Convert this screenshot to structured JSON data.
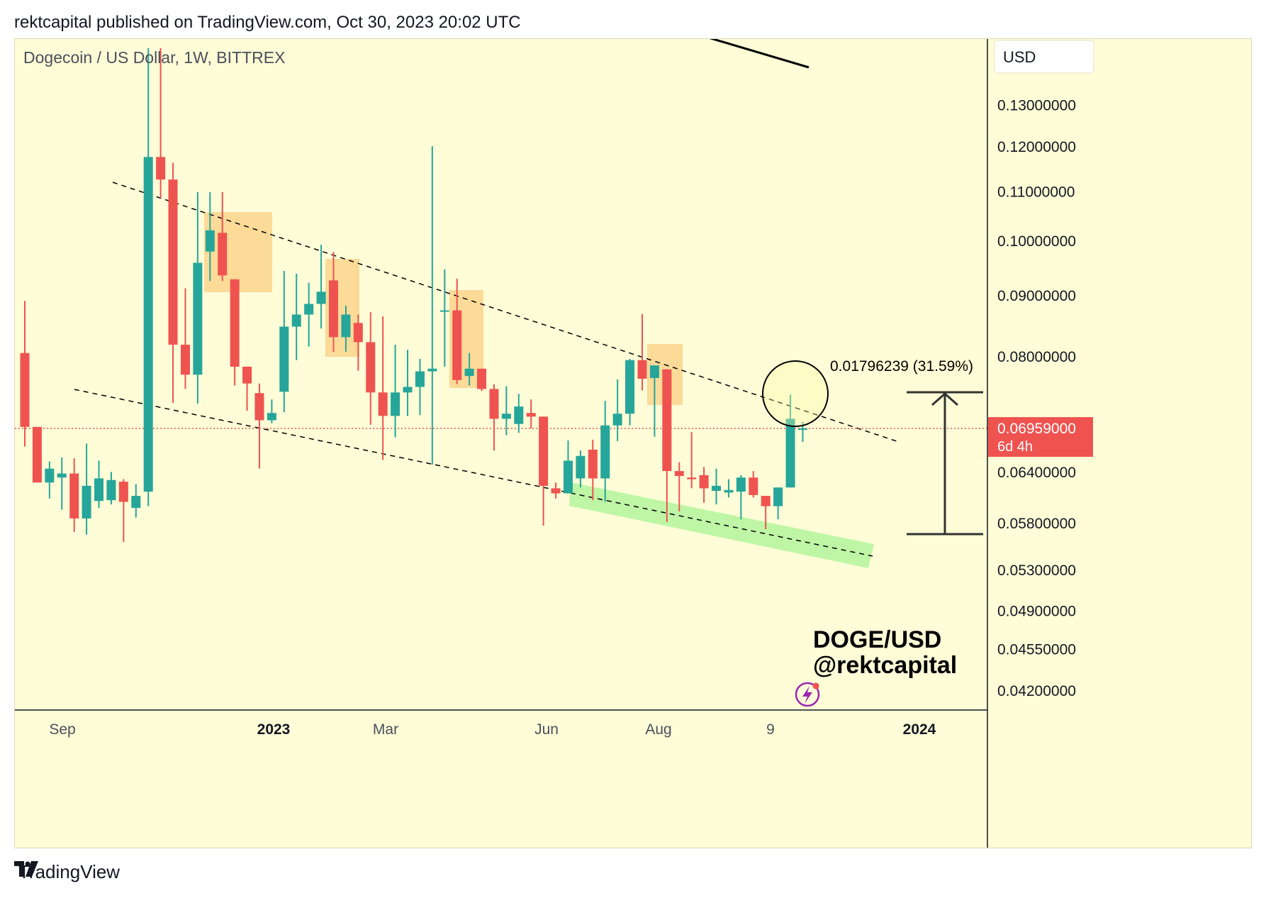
{
  "header": {
    "published": "rektcapital published on TradingView.com, Oct 30, 2023 20:02 UTC"
  },
  "chart": {
    "symbol_title": "Dogecoin / US Dollar, 1W, BITTREX",
    "currency_label": "USD",
    "watermark_line1": "DOGE/USD",
    "watermark_line2": "@rektcapital",
    "measure_label": "0.01796239 (31.59%)",
    "price_label": "0.06959000",
    "countdown_label": "6d 4h"
  },
  "footer": {
    "brand": "TradingView"
  },
  "colors": {
    "background": "#fefdd7",
    "up": "#26a69a",
    "down": "#ef5350",
    "zone": "#fbd38d",
    "support_zone": "#b7f5a0",
    "price_badge": "#ef5350"
  },
  "chart_data": {
    "type": "candlestick",
    "title": "Dogecoin / US Dollar, 1W, BITTREX",
    "y_axis_ticks": [
      "0.13000000",
      "0.12000000",
      "0.11000000",
      "0.10000000",
      "0.09000000",
      "0.08000000",
      "0.06959000",
      "0.06400000",
      "0.05800000",
      "0.05300000",
      "0.04900000",
      "0.04550000",
      "0.04200000"
    ],
    "x_axis_labels": [
      {
        "label": "Sep",
        "bold": false
      },
      {
        "label": "2023",
        "bold": true
      },
      {
        "label": "Mar",
        "bold": false
      },
      {
        "label": "Jun",
        "bold": false
      },
      {
        "label": "Aug",
        "bold": false
      },
      {
        "label": "9",
        "bold": false
      },
      {
        "label": "2024",
        "bold": true
      }
    ],
    "log_scale": true,
    "ylim": [
      0.0395,
      0.145
    ],
    "current_price": 0.06959,
    "candles": [
      {
        "o": 0.0805,
        "h": 0.089,
        "l": 0.0672,
        "c": 0.0698
      },
      {
        "o": 0.0698,
        "h": 0.0698,
        "l": 0.0628,
        "c": 0.0627
      },
      {
        "o": 0.0627,
        "h": 0.0653,
        "l": 0.0608,
        "c": 0.0644
      },
      {
        "o": 0.0633,
        "h": 0.0658,
        "l": 0.0595,
        "c": 0.0638
      },
      {
        "o": 0.0638,
        "h": 0.0657,
        "l": 0.057,
        "c": 0.0585
      },
      {
        "o": 0.0585,
        "h": 0.0676,
        "l": 0.0567,
        "c": 0.0623
      },
      {
        "o": 0.0605,
        "h": 0.0654,
        "l": 0.0597,
        "c": 0.0632
      },
      {
        "o": 0.0606,
        "h": 0.064,
        "l": 0.0601,
        "c": 0.063
      },
      {
        "o": 0.0628,
        "h": 0.0631,
        "l": 0.0559,
        "c": 0.0604
      },
      {
        "o": 0.0597,
        "h": 0.0625,
        "l": 0.0586,
        "c": 0.0611
      },
      {
        "o": 0.0616,
        "h": 0.145,
        "l": 0.0599,
        "c": 0.1175
      },
      {
        "o": 0.1175,
        "h": 0.145,
        "l": 0.1085,
        "c": 0.1125
      },
      {
        "o": 0.1125,
        "h": 0.1162,
        "l": 0.0731,
        "c": 0.0818
      },
      {
        "o": 0.0818,
        "h": 0.0912,
        "l": 0.0751,
        "c": 0.0772
      },
      {
        "o": 0.0772,
        "h": 0.1098,
        "l": 0.073,
        "c": 0.0958
      },
      {
        "o": 0.0979,
        "h": 0.1098,
        "l": 0.0925,
        "c": 0.102
      },
      {
        "o": 0.1015,
        "h": 0.1098,
        "l": 0.0925,
        "c": 0.0935
      },
      {
        "o": 0.0928,
        "h": 0.0928,
        "l": 0.0756,
        "c": 0.0784
      },
      {
        "o": 0.0784,
        "h": 0.0784,
        "l": 0.072,
        "c": 0.0759
      },
      {
        "o": 0.0745,
        "h": 0.0759,
        "l": 0.0644,
        "c": 0.0707
      },
      {
        "o": 0.0707,
        "h": 0.0736,
        "l": 0.0703,
        "c": 0.0717
      },
      {
        "o": 0.0747,
        "h": 0.0943,
        "l": 0.0718,
        "c": 0.0847
      },
      {
        "o": 0.0847,
        "h": 0.0938,
        "l": 0.0794,
        "c": 0.0867
      },
      {
        "o": 0.0867,
        "h": 0.0922,
        "l": 0.0815,
        "c": 0.0885
      },
      {
        "o": 0.0885,
        "h": 0.0992,
        "l": 0.0844,
        "c": 0.0906
      },
      {
        "o": 0.0926,
        "h": 0.0978,
        "l": 0.0807,
        "c": 0.083
      },
      {
        "o": 0.083,
        "h": 0.0882,
        "l": 0.0807,
        "c": 0.0867
      },
      {
        "o": 0.0853,
        "h": 0.0867,
        "l": 0.0778,
        "c": 0.0822
      },
      {
        "o": 0.0822,
        "h": 0.0871,
        "l": 0.0701,
        "c": 0.0746
      },
      {
        "o": 0.0746,
        "h": 0.0864,
        "l": 0.0655,
        "c": 0.0713
      },
      {
        "o": 0.0713,
        "h": 0.0818,
        "l": 0.0684,
        "c": 0.0746
      },
      {
        "o": 0.0746,
        "h": 0.081,
        "l": 0.0713,
        "c": 0.0754
      },
      {
        "o": 0.0754,
        "h": 0.0796,
        "l": 0.0714,
        "c": 0.0777
      },
      {
        "o": 0.0777,
        "h": 0.12,
        "l": 0.0649,
        "c": 0.0781
      },
      {
        "o": 0.0874,
        "h": 0.0946,
        "l": 0.0784,
        "c": 0.0874
      },
      {
        "o": 0.0874,
        "h": 0.0929,
        "l": 0.0758,
        "c": 0.0764
      },
      {
        "o": 0.077,
        "h": 0.0805,
        "l": 0.0756,
        "c": 0.0781
      },
      {
        "o": 0.0781,
        "h": 0.0781,
        "l": 0.0748,
        "c": 0.0751
      },
      {
        "o": 0.0751,
        "h": 0.0758,
        "l": 0.0667,
        "c": 0.0709
      },
      {
        "o": 0.0709,
        "h": 0.0755,
        "l": 0.0687,
        "c": 0.0716
      },
      {
        "o": 0.0702,
        "h": 0.0744,
        "l": 0.069,
        "c": 0.0726
      },
      {
        "o": 0.0717,
        "h": 0.0736,
        "l": 0.0696,
        "c": 0.0712
      },
      {
        "o": 0.0712,
        "h": 0.0712,
        "l": 0.0577,
        "c": 0.0623
      },
      {
        "o": 0.062,
        "h": 0.0627,
        "l": 0.0608,
        "c": 0.0614
      },
      {
        "o": 0.0614,
        "h": 0.068,
        "l": 0.0617,
        "c": 0.0654
      },
      {
        "o": 0.0632,
        "h": 0.0667,
        "l": 0.0621,
        "c": 0.066
      },
      {
        "o": 0.0668,
        "h": 0.0681,
        "l": 0.0606,
        "c": 0.0632
      },
      {
        "o": 0.0632,
        "h": 0.0734,
        "l": 0.0604,
        "c": 0.07
      },
      {
        "o": 0.07,
        "h": 0.0765,
        "l": 0.0679,
        "c": 0.0716
      },
      {
        "o": 0.0716,
        "h": 0.0796,
        "l": 0.07,
        "c": 0.0794
      },
      {
        "o": 0.0794,
        "h": 0.0868,
        "l": 0.0749,
        "c": 0.0766
      },
      {
        "o": 0.0767,
        "h": 0.0784,
        "l": 0.0685,
        "c": 0.0786
      },
      {
        "o": 0.078,
        "h": 0.078,
        "l": 0.0581,
        "c": 0.0641
      },
      {
        "o": 0.0641,
        "h": 0.0652,
        "l": 0.0593,
        "c": 0.0635
      },
      {
        "o": 0.0633,
        "h": 0.0691,
        "l": 0.062,
        "c": 0.0631
      },
      {
        "o": 0.0636,
        "h": 0.0646,
        "l": 0.0603,
        "c": 0.062
      },
      {
        "o": 0.0617,
        "h": 0.0644,
        "l": 0.0601,
        "c": 0.0623
      },
      {
        "o": 0.0615,
        "h": 0.0631,
        "l": 0.0609,
        "c": 0.0618
      },
      {
        "o": 0.0616,
        "h": 0.0636,
        "l": 0.0584,
        "c": 0.0633
      },
      {
        "o": 0.0633,
        "h": 0.0641,
        "l": 0.0609,
        "c": 0.0612
      },
      {
        "o": 0.0611,
        "h": 0.0611,
        "l": 0.0573,
        "c": 0.0599
      },
      {
        "o": 0.0599,
        "h": 0.0621,
        "l": 0.0584,
        "c": 0.0621
      },
      {
        "o": 0.0621,
        "h": 0.0743,
        "l": 0.0621,
        "c": 0.0709
      },
      {
        "o": 0.0696,
        "h": 0.0705,
        "l": 0.0678,
        "c": 0.0696
      }
    ]
  }
}
